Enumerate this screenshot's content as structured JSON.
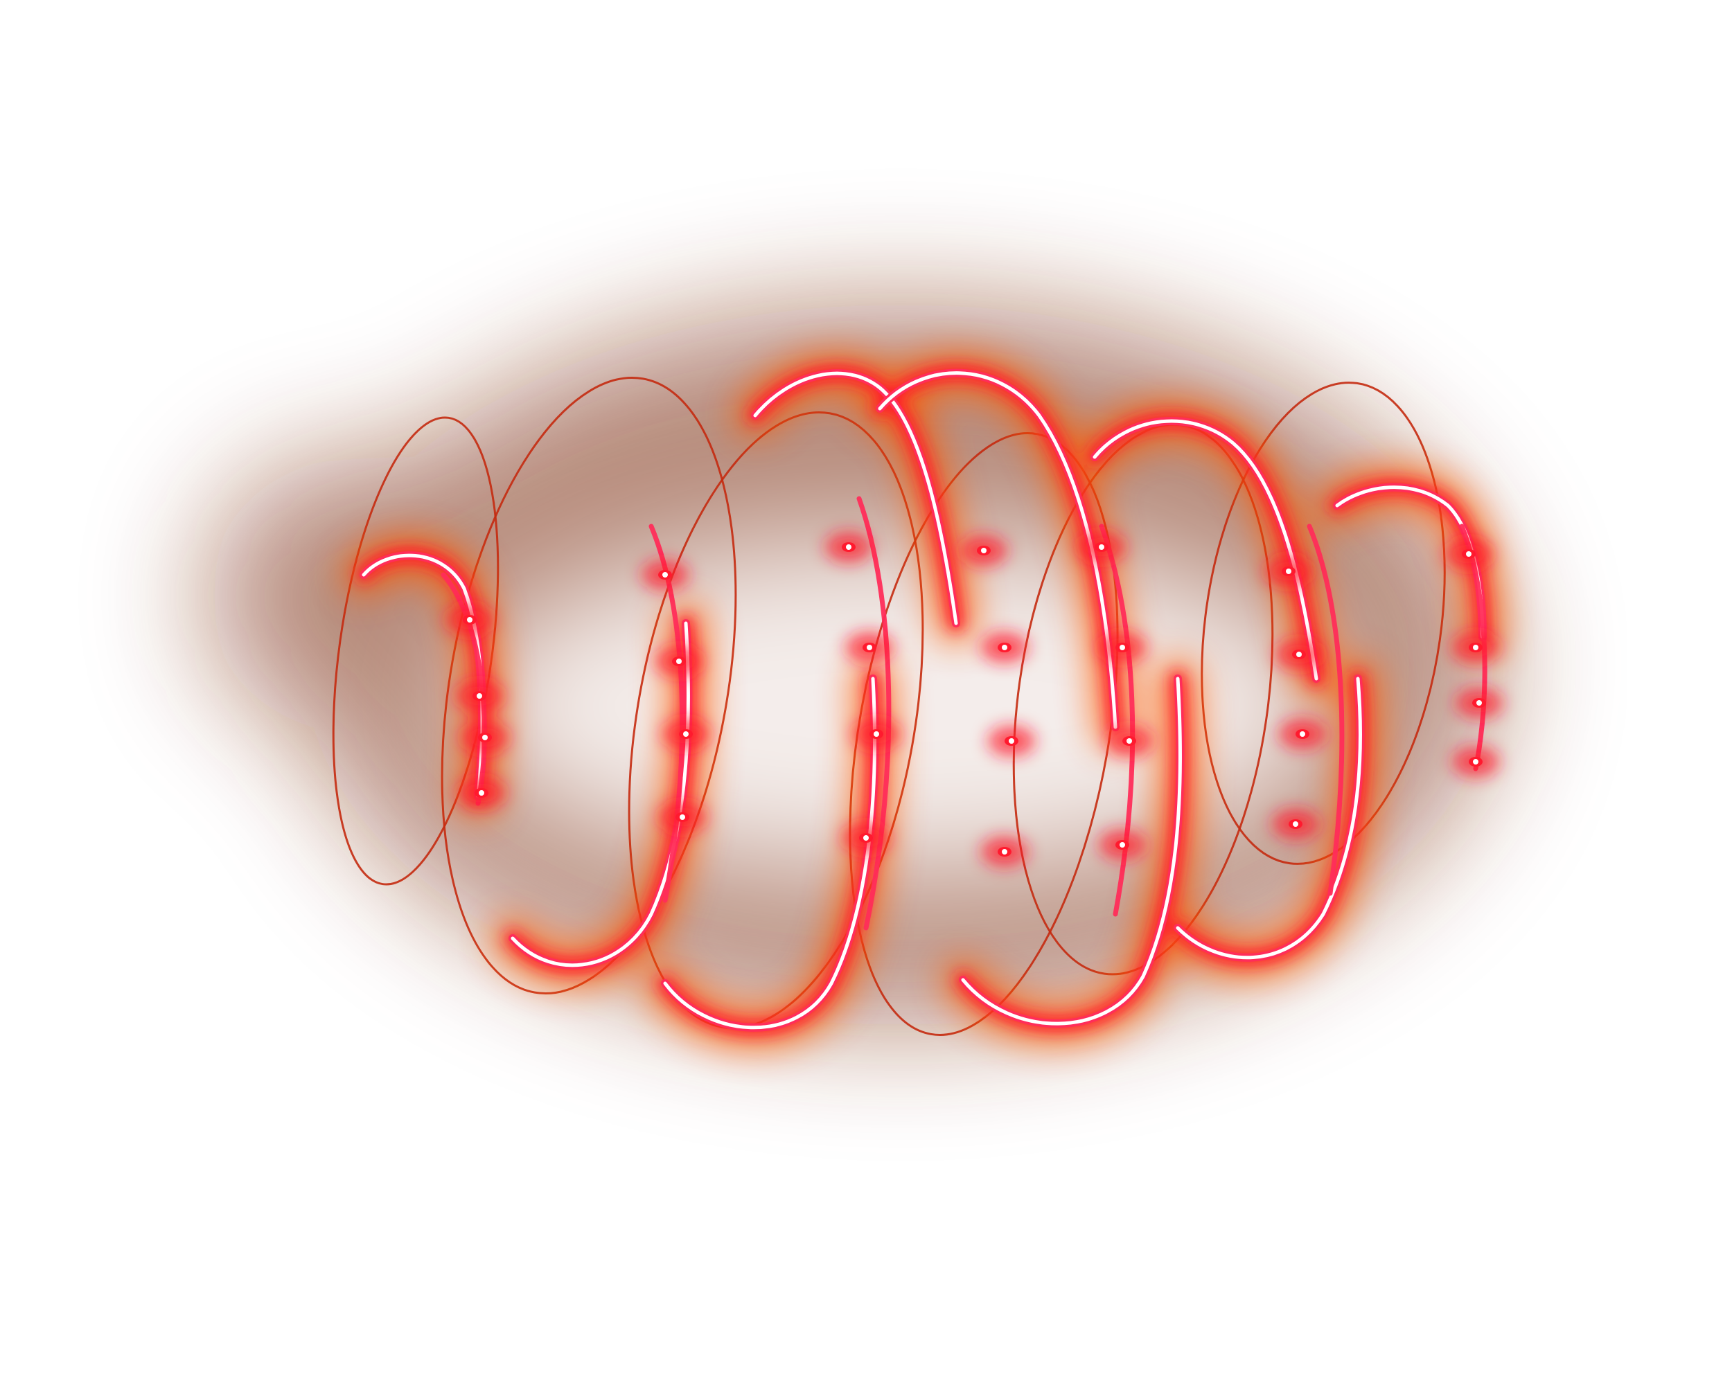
{
  "artwork": {
    "subject": "glowing-spiral-coil",
    "palette": {
      "background": "#ffffff",
      "haze": "#7a2a10",
      "glow_orange": "#ff5a00",
      "glow_red": "#ff1a2e",
      "core_white": "#ffffff",
      "thin_ring": "#c42a10",
      "pink_ring": "#ff2d5a"
    }
  }
}
